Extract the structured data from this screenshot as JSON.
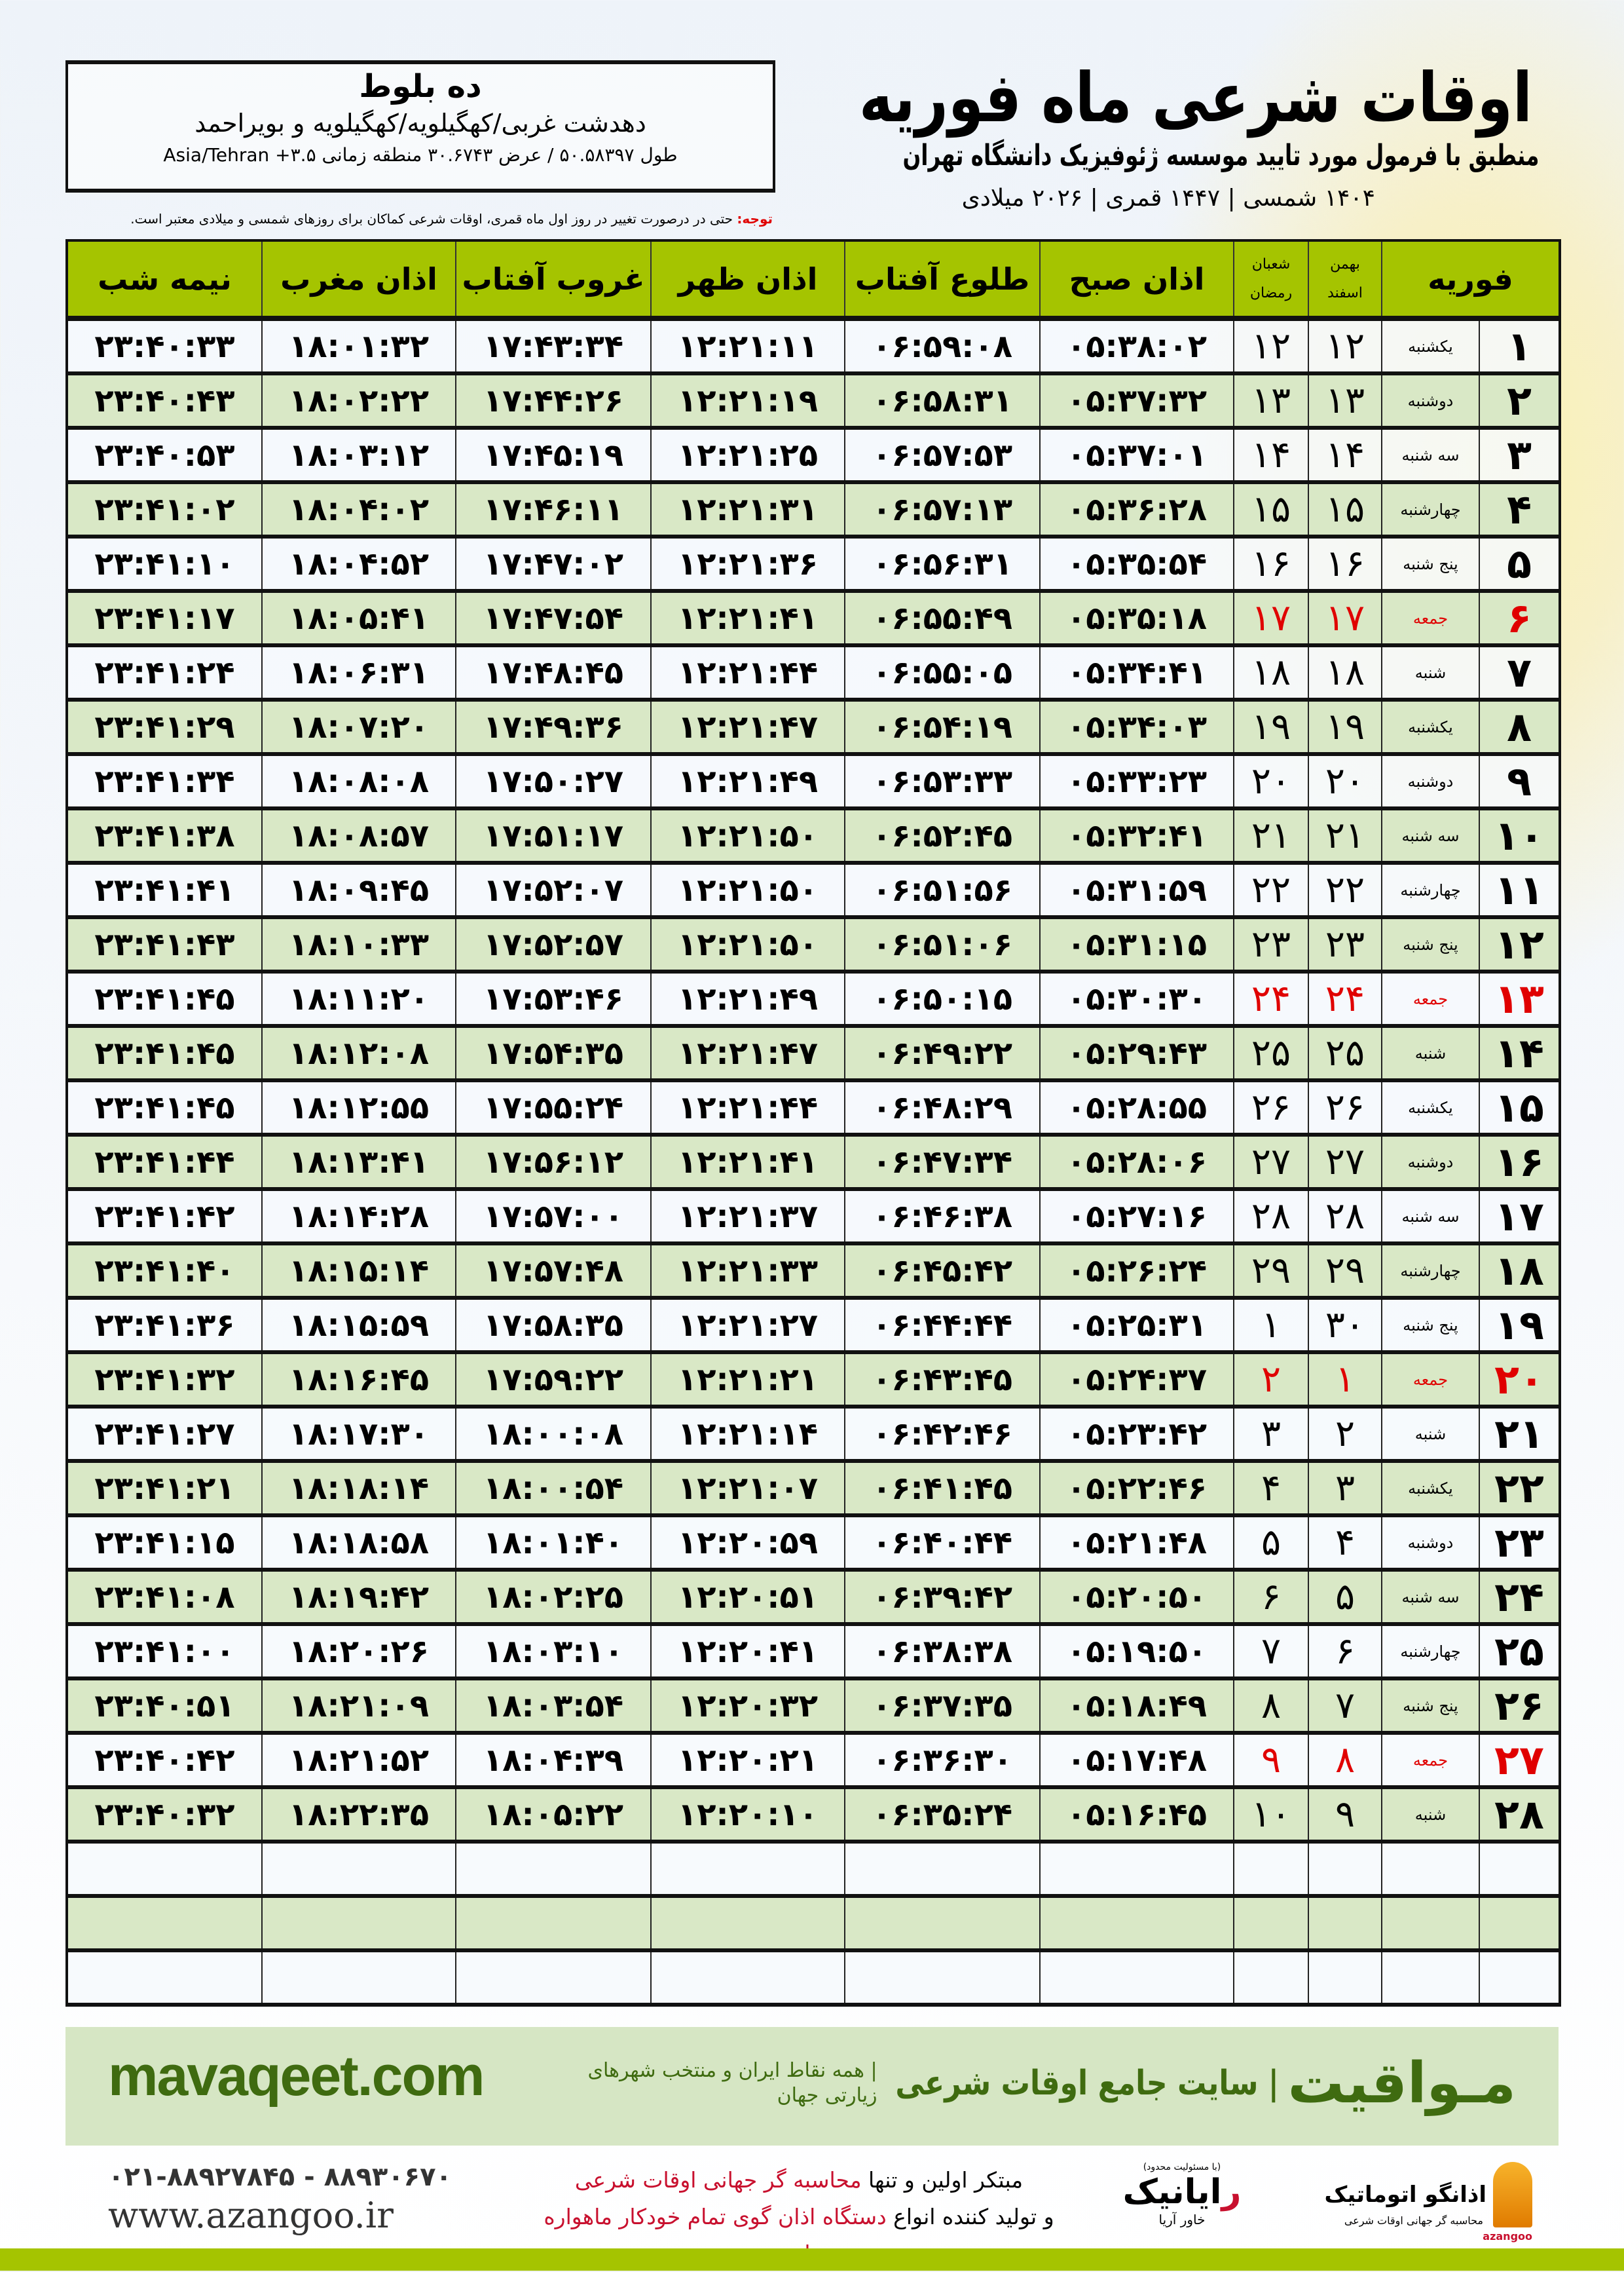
{
  "header": {
    "title": "اوقات شرعی ماه فوریه",
    "subtitle": "منطبق با فرمول مورد تایید موسسه ژئوفیزیک دانشگاه تهران",
    "years": "۱۴۰۴ شمسی | ۱۴۴۷ قمری | ۲۰۲۶ میلادی"
  },
  "location": {
    "city": "ده بلوط",
    "region": "دهدشت غربی/کهگیلویه/کهگیلویه و بویراحمد",
    "coords": "طول ۵۰.۵۸۳۹۷ / عرض ۳۰.۶۷۴۳ منطقه زمانی ۳.۵+ Asia/Tehran"
  },
  "note": {
    "label": "توجه:",
    "text": " حتی در درصورت تغییر در روز اول ماه قمری، اوقات شرعی کماکان برای روزهای شمسی و میلادی معتبر است."
  },
  "colors": {
    "header_green": "#a5c400",
    "row_green": "#d9e8c6",
    "holiday_red": "#e00000",
    "brand_green": "#3f6b10"
  },
  "table": {
    "columns": {
      "day": "فوریه",
      "shamsi_top": "بهمن",
      "shamsi_bottom": "اسفند",
      "qamari_top": "شعبان",
      "qamari_bottom": "رمضان",
      "sobh": "اذان صبح",
      "tolu": "طلوع آفتاب",
      "zohr": "اذان ظهر",
      "ghurub": "غروب آفتاب",
      "maghrib": "اذان مغرب",
      "nimeshab": "نیمه شب"
    },
    "empty_rows": 3,
    "rows": [
      {
        "day": "۱",
        "weekday": "یکشنبه",
        "shamsi": "۱۲",
        "qamari": "۱۲",
        "sobh": "۰۵:۳۸:۰۲",
        "tolu": "۰۶:۵۹:۰۸",
        "zohr": "۱۲:۲۱:۱۱",
        "ghurub": "۱۷:۴۳:۳۴",
        "maghrib": "۱۸:۰۱:۳۲",
        "nimeshab": "۲۳:۴۰:۳۳",
        "holiday": false
      },
      {
        "day": "۲",
        "weekday": "دوشنبه",
        "shamsi": "۱۳",
        "qamari": "۱۳",
        "sobh": "۰۵:۳۷:۳۲",
        "tolu": "۰۶:۵۸:۳۱",
        "zohr": "۱۲:۲۱:۱۹",
        "ghurub": "۱۷:۴۴:۲۶",
        "maghrib": "۱۸:۰۲:۲۲",
        "nimeshab": "۲۳:۴۰:۴۳",
        "holiday": false
      },
      {
        "day": "۳",
        "weekday": "سه شنبه",
        "shamsi": "۱۴",
        "qamari": "۱۴",
        "sobh": "۰۵:۳۷:۰۱",
        "tolu": "۰۶:۵۷:۵۳",
        "zohr": "۱۲:۲۱:۲۵",
        "ghurub": "۱۷:۴۵:۱۹",
        "maghrib": "۱۸:۰۳:۱۲",
        "nimeshab": "۲۳:۴۰:۵۳",
        "holiday": false
      },
      {
        "day": "۴",
        "weekday": "چهارشنبه",
        "shamsi": "۱۵",
        "qamari": "۱۵",
        "sobh": "۰۵:۳۶:۲۸",
        "tolu": "۰۶:۵۷:۱۳",
        "zohr": "۱۲:۲۱:۳۱",
        "ghurub": "۱۷:۴۶:۱۱",
        "maghrib": "۱۸:۰۴:۰۲",
        "nimeshab": "۲۳:۴۱:۰۲",
        "holiday": false
      },
      {
        "day": "۵",
        "weekday": "پنج شنبه",
        "shamsi": "۱۶",
        "qamari": "۱۶",
        "sobh": "۰۵:۳۵:۵۴",
        "tolu": "۰۶:۵۶:۳۱",
        "zohr": "۱۲:۲۱:۳۶",
        "ghurub": "۱۷:۴۷:۰۲",
        "maghrib": "۱۸:۰۴:۵۲",
        "nimeshab": "۲۳:۴۱:۱۰",
        "holiday": false
      },
      {
        "day": "۶",
        "weekday": "جمعه",
        "shamsi": "۱۷",
        "qamari": "۱۷",
        "sobh": "۰۵:۳۵:۱۸",
        "tolu": "۰۶:۵۵:۴۹",
        "zohr": "۱۲:۲۱:۴۱",
        "ghurub": "۱۷:۴۷:۵۴",
        "maghrib": "۱۸:۰۵:۴۱",
        "nimeshab": "۲۳:۴۱:۱۷",
        "holiday": true
      },
      {
        "day": "۷",
        "weekday": "شنبه",
        "shamsi": "۱۸",
        "qamari": "۱۸",
        "sobh": "۰۵:۳۴:۴۱",
        "tolu": "۰۶:۵۵:۰۵",
        "zohr": "۱۲:۲۱:۴۴",
        "ghurub": "۱۷:۴۸:۴۵",
        "maghrib": "۱۸:۰۶:۳۱",
        "nimeshab": "۲۳:۴۱:۲۴",
        "holiday": false
      },
      {
        "day": "۸",
        "weekday": "یکشنبه",
        "shamsi": "۱۹",
        "qamari": "۱۹",
        "sobh": "۰۵:۳۴:۰۳",
        "tolu": "۰۶:۵۴:۱۹",
        "zohr": "۱۲:۲۱:۴۷",
        "ghurub": "۱۷:۴۹:۳۶",
        "maghrib": "۱۸:۰۷:۲۰",
        "nimeshab": "۲۳:۴۱:۲۹",
        "holiday": false
      },
      {
        "day": "۹",
        "weekday": "دوشنبه",
        "shamsi": "۲۰",
        "qamari": "۲۰",
        "sobh": "۰۵:۳۳:۲۳",
        "tolu": "۰۶:۵۳:۳۳",
        "zohr": "۱۲:۲۱:۴۹",
        "ghurub": "۱۷:۵۰:۲۷",
        "maghrib": "۱۸:۰۸:۰۸",
        "nimeshab": "۲۳:۴۱:۳۴",
        "holiday": false
      },
      {
        "day": "۱۰",
        "weekday": "سه شنبه",
        "shamsi": "۲۱",
        "qamari": "۲۱",
        "sobh": "۰۵:۳۲:۴۱",
        "tolu": "۰۶:۵۲:۴۵",
        "zohr": "۱۲:۲۱:۵۰",
        "ghurub": "۱۷:۵۱:۱۷",
        "maghrib": "۱۸:۰۸:۵۷",
        "nimeshab": "۲۳:۴۱:۳۸",
        "holiday": false
      },
      {
        "day": "۱۱",
        "weekday": "چهارشنبه",
        "shamsi": "۲۲",
        "qamari": "۲۲",
        "sobh": "۰۵:۳۱:۵۹",
        "tolu": "۰۶:۵۱:۵۶",
        "zohr": "۱۲:۲۱:۵۰",
        "ghurub": "۱۷:۵۲:۰۷",
        "maghrib": "۱۸:۰۹:۴۵",
        "nimeshab": "۲۳:۴۱:۴۱",
        "holiday": false
      },
      {
        "day": "۱۲",
        "weekday": "پنج شنبه",
        "shamsi": "۲۳",
        "qamari": "۲۳",
        "sobh": "۰۵:۳۱:۱۵",
        "tolu": "۰۶:۵۱:۰۶",
        "zohr": "۱۲:۲۱:۵۰",
        "ghurub": "۱۷:۵۲:۵۷",
        "maghrib": "۱۸:۱۰:۳۳",
        "nimeshab": "۲۳:۴۱:۴۳",
        "holiday": false
      },
      {
        "day": "۱۳",
        "weekday": "جمعه",
        "shamsi": "۲۴",
        "qamari": "۲۴",
        "sobh": "۰۵:۳۰:۳۰",
        "tolu": "۰۶:۵۰:۱۵",
        "zohr": "۱۲:۲۱:۴۹",
        "ghurub": "۱۷:۵۳:۴۶",
        "maghrib": "۱۸:۱۱:۲۰",
        "nimeshab": "۲۳:۴۱:۴۵",
        "holiday": true
      },
      {
        "day": "۱۴",
        "weekday": "شنبه",
        "shamsi": "۲۵",
        "qamari": "۲۵",
        "sobh": "۰۵:۲۹:۴۳",
        "tolu": "۰۶:۴۹:۲۲",
        "zohr": "۱۲:۲۱:۴۷",
        "ghurub": "۱۷:۵۴:۳۵",
        "maghrib": "۱۸:۱۲:۰۸",
        "nimeshab": "۲۳:۴۱:۴۵",
        "holiday": false
      },
      {
        "day": "۱۵",
        "weekday": "یکشنبه",
        "shamsi": "۲۶",
        "qamari": "۲۶",
        "sobh": "۰۵:۲۸:۵۵",
        "tolu": "۰۶:۴۸:۲۹",
        "zohr": "۱۲:۲۱:۴۴",
        "ghurub": "۱۷:۵۵:۲۴",
        "maghrib": "۱۸:۱۲:۵۵",
        "nimeshab": "۲۳:۴۱:۴۵",
        "holiday": false
      },
      {
        "day": "۱۶",
        "weekday": "دوشنبه",
        "shamsi": "۲۷",
        "qamari": "۲۷",
        "sobh": "۰۵:۲۸:۰۶",
        "tolu": "۰۶:۴۷:۳۴",
        "zohr": "۱۲:۲۱:۴۱",
        "ghurub": "۱۷:۵۶:۱۲",
        "maghrib": "۱۸:۱۳:۴۱",
        "nimeshab": "۲۳:۴۱:۴۴",
        "holiday": false
      },
      {
        "day": "۱۷",
        "weekday": "سه شنبه",
        "shamsi": "۲۸",
        "qamari": "۲۸",
        "sobh": "۰۵:۲۷:۱۶",
        "tolu": "۰۶:۴۶:۳۸",
        "zohr": "۱۲:۲۱:۳۷",
        "ghurub": "۱۷:۵۷:۰۰",
        "maghrib": "۱۸:۱۴:۲۸",
        "nimeshab": "۲۳:۴۱:۴۲",
        "holiday": false
      },
      {
        "day": "۱۸",
        "weekday": "چهارشنبه",
        "shamsi": "۲۹",
        "qamari": "۲۹",
        "sobh": "۰۵:۲۶:۲۴",
        "tolu": "۰۶:۴۵:۴۲",
        "zohr": "۱۲:۲۱:۳۳",
        "ghurub": "۱۷:۵۷:۴۸",
        "maghrib": "۱۸:۱۵:۱۴",
        "nimeshab": "۲۳:۴۱:۴۰",
        "holiday": false
      },
      {
        "day": "۱۹",
        "weekday": "پنج شنبه",
        "shamsi": "۳۰",
        "qamari": "۱",
        "sobh": "۰۵:۲۵:۳۱",
        "tolu": "۰۶:۴۴:۴۴",
        "zohr": "۱۲:۲۱:۲۷",
        "ghurub": "۱۷:۵۸:۳۵",
        "maghrib": "۱۸:۱۵:۵۹",
        "nimeshab": "۲۳:۴۱:۳۶",
        "holiday": false
      },
      {
        "day": "۲۰",
        "weekday": "جمعه",
        "shamsi": "۱",
        "qamari": "۲",
        "sobh": "۰۵:۲۴:۳۷",
        "tolu": "۰۶:۴۳:۴۵",
        "zohr": "۱۲:۲۱:۲۱",
        "ghurub": "۱۷:۵۹:۲۲",
        "maghrib": "۱۸:۱۶:۴۵",
        "nimeshab": "۲۳:۴۱:۳۲",
        "holiday": true
      },
      {
        "day": "۲۱",
        "weekday": "شنبه",
        "shamsi": "۲",
        "qamari": "۳",
        "sobh": "۰۵:۲۳:۴۲",
        "tolu": "۰۶:۴۲:۴۶",
        "zohr": "۱۲:۲۱:۱۴",
        "ghurub": "۱۸:۰۰:۰۸",
        "maghrib": "۱۸:۱۷:۳۰",
        "nimeshab": "۲۳:۴۱:۲۷",
        "holiday": false
      },
      {
        "day": "۲۲",
        "weekday": "یکشنبه",
        "shamsi": "۳",
        "qamari": "۴",
        "sobh": "۰۵:۲۲:۴۶",
        "tolu": "۰۶:۴۱:۴۵",
        "zohr": "۱۲:۲۱:۰۷",
        "ghurub": "۱۸:۰۰:۵۴",
        "maghrib": "۱۸:۱۸:۱۴",
        "nimeshab": "۲۳:۴۱:۲۱",
        "holiday": false
      },
      {
        "day": "۲۳",
        "weekday": "دوشنبه",
        "shamsi": "۴",
        "qamari": "۵",
        "sobh": "۰۵:۲۱:۴۸",
        "tolu": "۰۶:۴۰:۴۴",
        "zohr": "۱۲:۲۰:۵۹",
        "ghurub": "۱۸:۰۱:۴۰",
        "maghrib": "۱۸:۱۸:۵۸",
        "nimeshab": "۲۳:۴۱:۱۵",
        "holiday": false
      },
      {
        "day": "۲۴",
        "weekday": "سه شنبه",
        "shamsi": "۵",
        "qamari": "۶",
        "sobh": "۰۵:۲۰:۵۰",
        "tolu": "۰۶:۳۹:۴۲",
        "zohr": "۱۲:۲۰:۵۱",
        "ghurub": "۱۸:۰۲:۲۵",
        "maghrib": "۱۸:۱۹:۴۲",
        "nimeshab": "۲۳:۴۱:۰۸",
        "holiday": false
      },
      {
        "day": "۲۵",
        "weekday": "چهارشنبه",
        "shamsi": "۶",
        "qamari": "۷",
        "sobh": "۰۵:۱۹:۵۰",
        "tolu": "۰۶:۳۸:۳۸",
        "zohr": "۱۲:۲۰:۴۱",
        "ghurub": "۱۸:۰۳:۱۰",
        "maghrib": "۱۸:۲۰:۲۶",
        "nimeshab": "۲۳:۴۱:۰۰",
        "holiday": false
      },
      {
        "day": "۲۶",
        "weekday": "پنج شنبه",
        "shamsi": "۷",
        "qamari": "۸",
        "sobh": "۰۵:۱۸:۴۹",
        "tolu": "۰۶:۳۷:۳۵",
        "zohr": "۱۲:۲۰:۳۲",
        "ghurub": "۱۸:۰۳:۵۴",
        "maghrib": "۱۸:۲۱:۰۹",
        "nimeshab": "۲۳:۴۰:۵۱",
        "holiday": false
      },
      {
        "day": "۲۷",
        "weekday": "جمعه",
        "shamsi": "۸",
        "qamari": "۹",
        "sobh": "۰۵:۱۷:۴۸",
        "tolu": "۰۶:۳۶:۳۰",
        "zohr": "۱۲:۲۰:۲۱",
        "ghurub": "۱۸:۰۴:۳۹",
        "maghrib": "۱۸:۲۱:۵۲",
        "nimeshab": "۲۳:۴۰:۴۲",
        "holiday": true
      },
      {
        "day": "۲۸",
        "weekday": "شنبه",
        "shamsi": "۹",
        "qamari": "۱۰",
        "sobh": "۰۵:۱۶:۴۵",
        "tolu": "۰۶:۳۵:۲۴",
        "zohr": "۱۲:۲۰:۱۰",
        "ghurub": "۱۸:۰۵:۲۲",
        "maghrib": "۱۸:۲۲:۳۵",
        "nimeshab": "۲۳:۴۰:۳۲",
        "holiday": false
      }
    ]
  },
  "footer": {
    "brand": "مـواقیت",
    "brand_tagline": "| سایت جامع اوقات شرعی",
    "brand_subtag": "| همه نقاط ایران و منتخب شهرهای زیارتی جهان",
    "site": "mavaqeet.com",
    "phone": "۰۲۱-۸۸۹۲۷۸۴۵ - ۸۸۹۳۰۶۷۰",
    "web": "www.azangoo.ir",
    "promo_line1_a": "مبتکر اولین و تنها ",
    "promo_line1_b": "محاسبه گر جهانی اوقات شرعی",
    "promo_line2_a": "و تولید کننده انواع ",
    "promo_line2_b": "دستگاه اذان گوی تمام خودکار ماهواره ای",
    "logo_rayanik_small": "(با مسئولیت محدود)",
    "logo_rayanik_r": "ر",
    "logo_rayanik": "ایانیک",
    "logo_rayanik_side": "خاور آریا",
    "logo_azangoo": "اذانگو اتوماتیک",
    "logo_azangoo_sub": "محاسبه گر جهانی اوقات شرعی",
    "logo_azangoo_latin": "azangoo"
  }
}
